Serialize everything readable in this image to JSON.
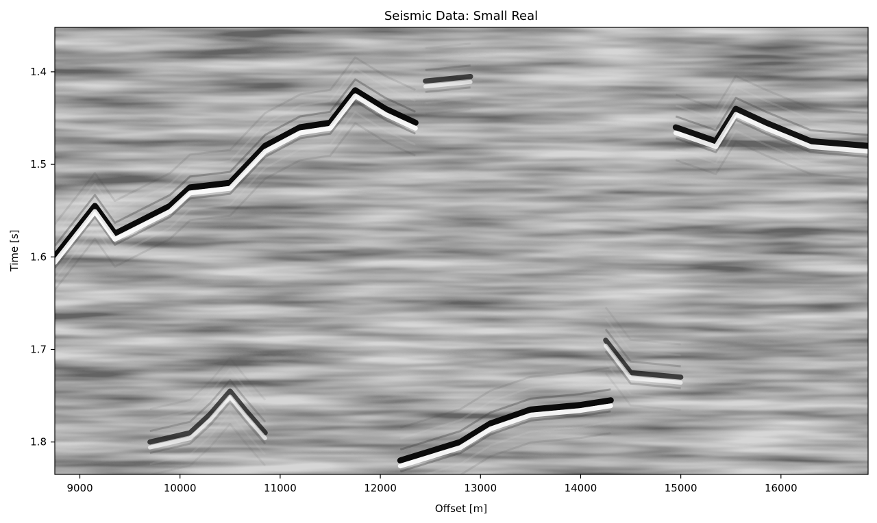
{
  "chart_data": {
    "type": "heatmap",
    "title": "Seismic Data: Small Real",
    "xlabel": "Offset [m]",
    "ylabel": "Time [s]",
    "xlim": [
      8750,
      16870
    ],
    "ylim": [
      1.835,
      1.352
    ],
    "y_inverted": true,
    "colormap": "gray (black = negative, white = positive amplitude)",
    "x_ticks": [
      {
        "value": 9000,
        "label": "9000"
      },
      {
        "value": 10000,
        "label": "10000"
      },
      {
        "value": 11000,
        "label": "11000"
      },
      {
        "value": 12000,
        "label": "12000"
      },
      {
        "value": 13000,
        "label": "13000"
      },
      {
        "value": 14000,
        "label": "14000"
      },
      {
        "value": 15000,
        "label": "15000"
      },
      {
        "value": 16000,
        "label": "16000"
      }
    ],
    "y_ticks": [
      {
        "value": 1.4,
        "label": "1.4"
      },
      {
        "value": 1.5,
        "label": "1.5"
      },
      {
        "value": 1.6,
        "label": "1.6"
      },
      {
        "value": 1.7,
        "label": "1.7"
      },
      {
        "value": 1.8,
        "label": "1.8"
      }
    ],
    "reflectors": [
      {
        "name": "upper-left strong",
        "points": [
          [
            8750,
            1.6
          ],
          [
            9150,
            1.545
          ],
          [
            9350,
            1.575
          ],
          [
            9900,
            1.545
          ],
          [
            10100,
            1.525
          ],
          [
            10500,
            1.52
          ],
          [
            10850,
            1.48
          ],
          [
            11200,
            1.46
          ],
          [
            11500,
            1.455
          ],
          [
            11750,
            1.42
          ],
          [
            12050,
            1.44
          ],
          [
            12350,
            1.455
          ]
        ],
        "strength": 1.0
      },
      {
        "name": "top-middle patch",
        "points": [
          [
            12450,
            1.41
          ],
          [
            12900,
            1.405
          ]
        ],
        "strength": 0.7
      },
      {
        "name": "upper-right strong",
        "points": [
          [
            14950,
            1.46
          ],
          [
            15350,
            1.475
          ],
          [
            15550,
            1.44
          ],
          [
            15850,
            1.455
          ],
          [
            16300,
            1.475
          ],
          [
            16870,
            1.48
          ]
        ],
        "strength": 0.95
      },
      {
        "name": "lower-middle strong",
        "points": [
          [
            12200,
            1.82
          ],
          [
            12800,
            1.8
          ],
          [
            13100,
            1.78
          ],
          [
            13500,
            1.765
          ],
          [
            14000,
            1.76
          ],
          [
            14300,
            1.755
          ]
        ],
        "strength": 1.0
      },
      {
        "name": "lower-left wiggle",
        "points": [
          [
            9700,
            1.8
          ],
          [
            10100,
            1.79
          ],
          [
            10300,
            1.77
          ],
          [
            10500,
            1.745
          ],
          [
            10650,
            1.765
          ],
          [
            10850,
            1.79
          ]
        ],
        "strength": 0.7
      },
      {
        "name": "right-middle dip",
        "points": [
          [
            14250,
            1.69
          ],
          [
            14500,
            1.725
          ],
          [
            15000,
            1.73
          ]
        ],
        "strength": 0.7
      }
    ]
  }
}
